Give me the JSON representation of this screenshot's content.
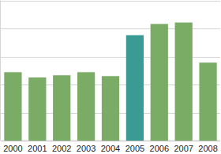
{
  "chart_data": {
    "type": "bar",
    "categories": [
      "2000",
      "2001",
      "2002",
      "2003",
      "2004",
      "2005",
      "2006",
      "2007",
      "2008"
    ],
    "values": [
      2.44,
      2.25,
      2.33,
      2.44,
      2.3,
      3.76,
      4.16,
      4.21,
      2.78
    ],
    "colors": [
      "#7aac66",
      "#7aac66",
      "#7aac66",
      "#7aac66",
      "#7aac66",
      "#3a9b95",
      "#7aac66",
      "#7aac66",
      "#7aac66"
    ],
    "ylim": [
      0,
      5
    ],
    "yticks": [
      0,
      1,
      2,
      3,
      4,
      5
    ],
    "grid": true,
    "tick_labels": "x"
  }
}
